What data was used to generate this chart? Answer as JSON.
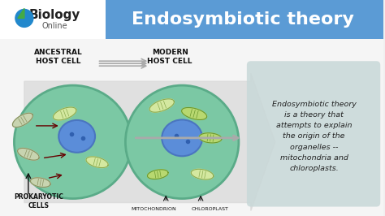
{
  "bg_color": "#f0f0f0",
  "header_bg": "#5b9bd5",
  "header_text": "Endosymbiotic theory",
  "header_text_color": "#ffffff",
  "logo_text": "Biology\nOnline",
  "title_bar_left_color": "#ffffff",
  "cell_fill_color": "#7bc8a4",
  "cell_edge_color": "#5aab88",
  "nucleus_color": "#5b8dd9",
  "nucleus_edge": "#4a75c0",
  "mito_fill": "#d4e8a0",
  "mito_edge": "#8aaa50",
  "chloro_fill": "#b8d870",
  "chloro_edge": "#6a9830",
  "prokary_fill": "#c8d4b0",
  "prokary_edge": "#889060",
  "arrow_color": "#c0c0c0",
  "text_color": "#222222",
  "label_color": "#111111",
  "desc_bg": "#c8d8d8",
  "description": "Endosymbiotic theory\nis a theory that\nattempts to explain\nthe origin of the\norganelles --\nmitochondria and\nchloroplasts.",
  "ancestral_label": "ANCESTRAL\nHOST CELL",
  "modern_label": "MODERN\nHOST CELL",
  "prokaryote_label": "PROKARYOTIC\nCELLS",
  "mito_label": "MITOCHONDRION",
  "chloro_label": "CHLOROPLAST"
}
